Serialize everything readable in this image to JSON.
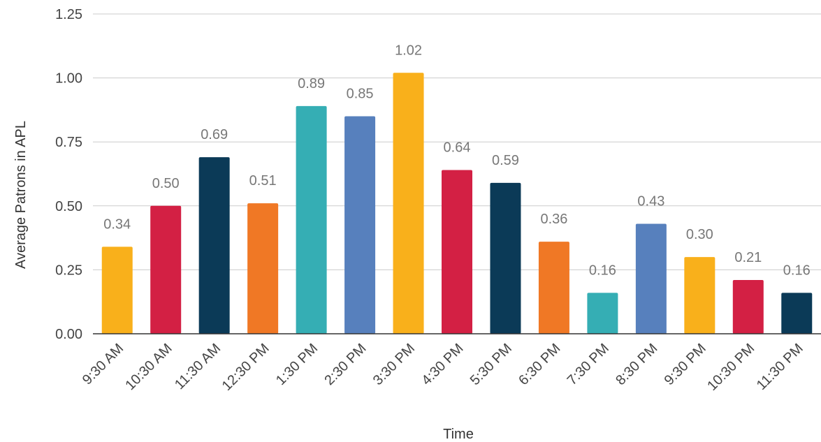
{
  "chart_data": {
    "type": "bar",
    "xlabel": "Time",
    "ylabel": "Average Patrons in APL",
    "ylim": [
      0,
      1.25
    ],
    "yticks": [
      "0.00",
      "0.25",
      "0.50",
      "0.75",
      "1.00",
      "1.25"
    ],
    "grid": true,
    "legend": "none",
    "categories": [
      "9:30 AM",
      "10:30 AM",
      "11:30 AM",
      "12:30 PM",
      "1:30 PM",
      "2:30 PM",
      "3:30 PM",
      "4:30 PM",
      "5:30 PM",
      "6:30 PM",
      "7:30 PM",
      "8:30 PM",
      "9:30 PM",
      "10:30 PM",
      "11:30 PM"
    ],
    "values": [
      0.34,
      0.5,
      0.69,
      0.51,
      0.89,
      0.85,
      1.02,
      0.64,
      0.59,
      0.36,
      0.16,
      0.43,
      0.3,
      0.21,
      0.16
    ],
    "value_labels": [
      "0.34",
      "0.50",
      "0.69",
      "0.51",
      "0.89",
      "0.85",
      "1.02",
      "0.64",
      "0.59",
      "0.36",
      "0.16",
      "0.43",
      "0.30",
      "0.21",
      "0.16"
    ],
    "bar_colors": [
      "#f9b01b",
      "#d32044",
      "#0b3a57",
      "#f07825",
      "#35aeb4",
      "#5780bd",
      "#f9b01b",
      "#d32044",
      "#0b3a57",
      "#f07825",
      "#35aeb4",
      "#5780bd",
      "#f9b01b",
      "#d32044",
      "#0b3a57"
    ]
  }
}
